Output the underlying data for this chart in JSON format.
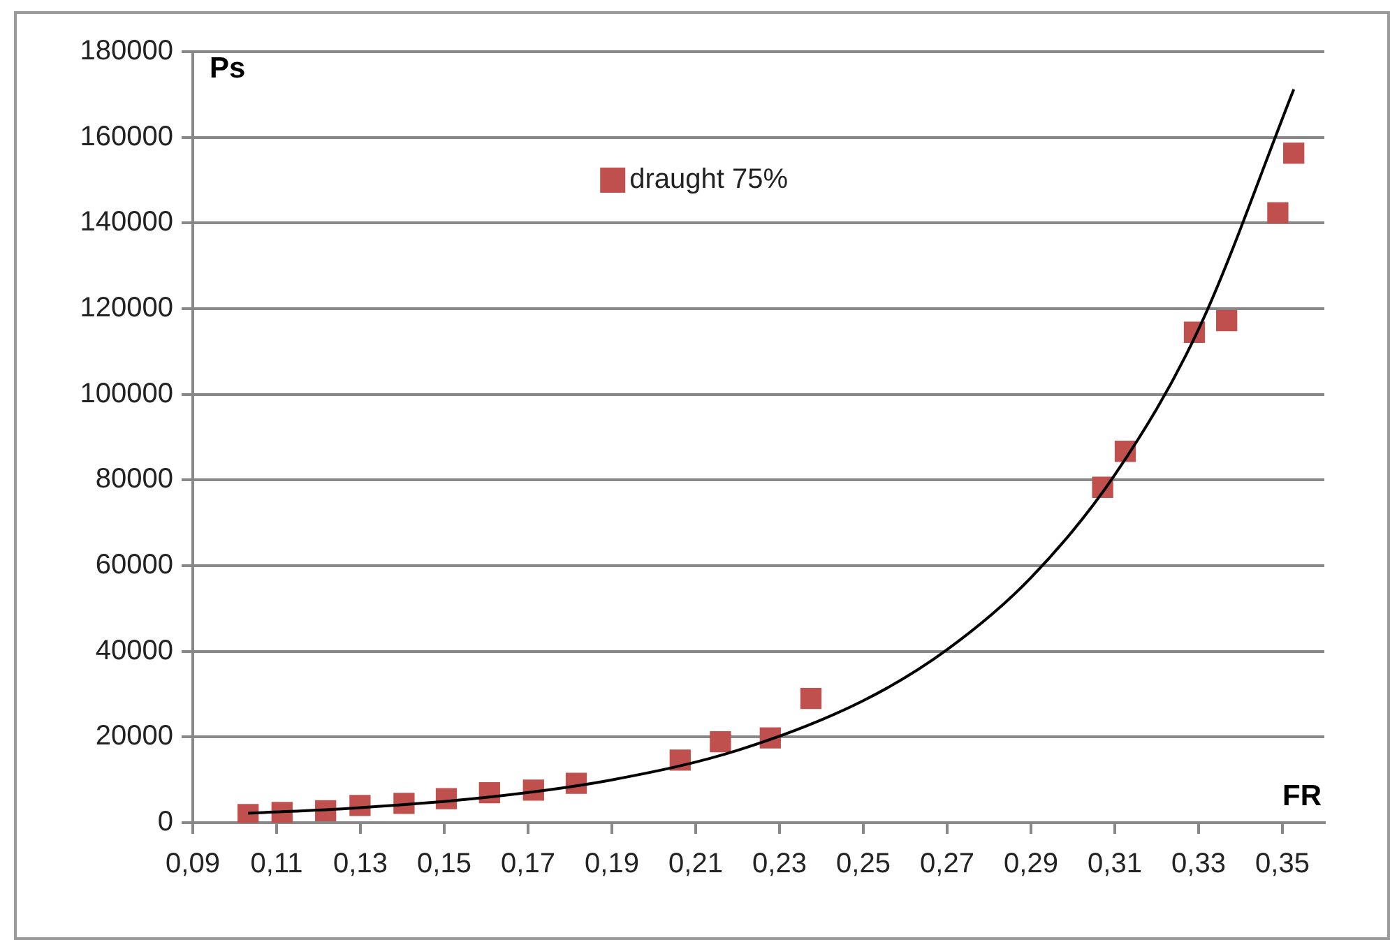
{
  "chart_data": {
    "type": "scatter",
    "xlabel": "FR",
    "ylabel": "Ps",
    "xlim": [
      0.09,
      0.36
    ],
    "xticks": [
      {
        "value": 0.09,
        "label": "0,09"
      },
      {
        "value": 0.11,
        "label": "0,11"
      },
      {
        "value": 0.13,
        "label": "0,13"
      },
      {
        "value": 0.15,
        "label": "0,15"
      },
      {
        "value": 0.17,
        "label": "0,17"
      },
      {
        "value": 0.19,
        "label": "0,19"
      },
      {
        "value": 0.21,
        "label": "0,21"
      },
      {
        "value": 0.23,
        "label": "0,23"
      },
      {
        "value": 0.25,
        "label": "0,25"
      },
      {
        "value": 0.27,
        "label": "0,27"
      },
      {
        "value": 0.29,
        "label": "0,29"
      },
      {
        "value": 0.31,
        "label": "0,31"
      },
      {
        "value": 0.33,
        "label": "0,33"
      },
      {
        "value": 0.35,
        "label": "0,35"
      }
    ],
    "ylim": [
      0,
      180000
    ],
    "yticks": [
      0,
      20000,
      40000,
      60000,
      80000,
      100000,
      120000,
      140000,
      160000,
      180000
    ],
    "grid": "y",
    "legend": "top",
    "series": [
      {
        "name": "draught 75%",
        "marker": "square",
        "color": "#c0504d",
        "x": [
          0.1032,
          0.1113,
          0.1217,
          0.1299,
          0.1404,
          0.1505,
          0.1608,
          0.1713,
          0.1815,
          0.2063,
          0.2159,
          0.2278,
          0.2375,
          0.3071,
          0.3125,
          0.329,
          0.3367,
          0.3489,
          0.3527
        ],
        "values": [
          1900,
          2400,
          2800,
          4000,
          4500,
          5600,
          7000,
          7600,
          9200,
          14600,
          18900,
          19800,
          29000,
          78300,
          86700,
          114500,
          117200,
          142400,
          156300
        ]
      },
      {
        "type": "line",
        "marker": "none",
        "color": "#000000",
        "x": [
          0.1032,
          0.13,
          0.16,
          0.19,
          0.22,
          0.25,
          0.27,
          0.29,
          0.31,
          0.33,
          0.3527
        ],
        "values": [
          2200,
          3500,
          5900,
          10000,
          16900,
          28500,
          40400,
          57200,
          81200,
          115200,
          171200
        ]
      }
    ]
  }
}
